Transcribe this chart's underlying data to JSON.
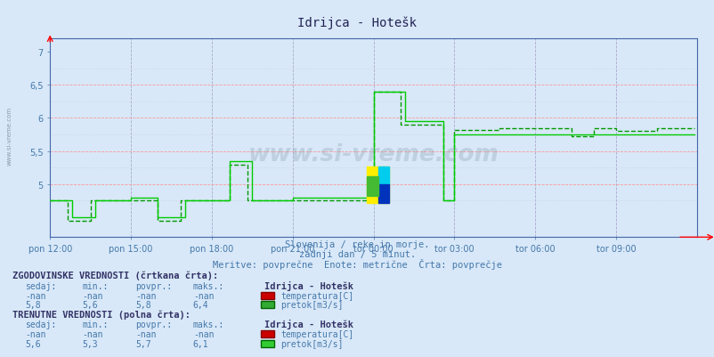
{
  "title": "Idrijca - Hotešk",
  "background_color": "#d8e8f8",
  "plot_bg_color": "#d8e8f8",
  "text_color": "#4477aa",
  "subtitle1": "Slovenija / reke in morje.",
  "subtitle2": "zadnji dan / 5 minut.",
  "subtitle3": "Meritve: povprečne  Enote: metrične  Črta: povprečje",
  "xlabel_ticks": [
    "pon 12:00",
    "pon 15:00",
    "pon 18:00",
    "pon 21:00",
    "tor 00:00",
    "tor 03:00",
    "tor 06:00",
    "tor 09:00"
  ],
  "xlabel_tick_pos": [
    0,
    36,
    72,
    108,
    144,
    180,
    216,
    252
  ],
  "ylim": [
    4.2,
    7.2
  ],
  "xlim": [
    0,
    288
  ],
  "watermark": "www.si-vreme.com",
  "legend_section1": "ZGODOVINSKE VREDNOSTI (črtkana črta):",
  "legend_section2": "TRENUTNE VREDNOSTI (polna črta):",
  "station_name": "Idrijca - Hotešk",
  "hist_temp_vals": [
    "-nan",
    "-nan",
    "-nan",
    "-nan"
  ],
  "hist_flow_vals": [
    "5,8",
    "5,6",
    "5,8",
    "6,4"
  ],
  "curr_temp_vals": [
    "-nan",
    "-nan",
    "-nan",
    "-nan"
  ],
  "curr_flow_vals": [
    "5,6",
    "5,3",
    "5,7",
    "6,1"
  ],
  "n_points": 288,
  "vgrid_positions": [
    0,
    36,
    72,
    108,
    144,
    180,
    216,
    252,
    288
  ],
  "hgrid_major": [
    5.0,
    5.5,
    6.0,
    6.5
  ],
  "hgrid_minor": [
    4.75,
    5.25,
    5.75,
    6.25,
    6.75
  ],
  "ytick_vals": [
    5.0,
    5.5,
    6.0,
    6.5,
    7.0
  ],
  "ytick_labels": [
    "5",
    "5,5",
    "6",
    "6,5",
    "7"
  ]
}
